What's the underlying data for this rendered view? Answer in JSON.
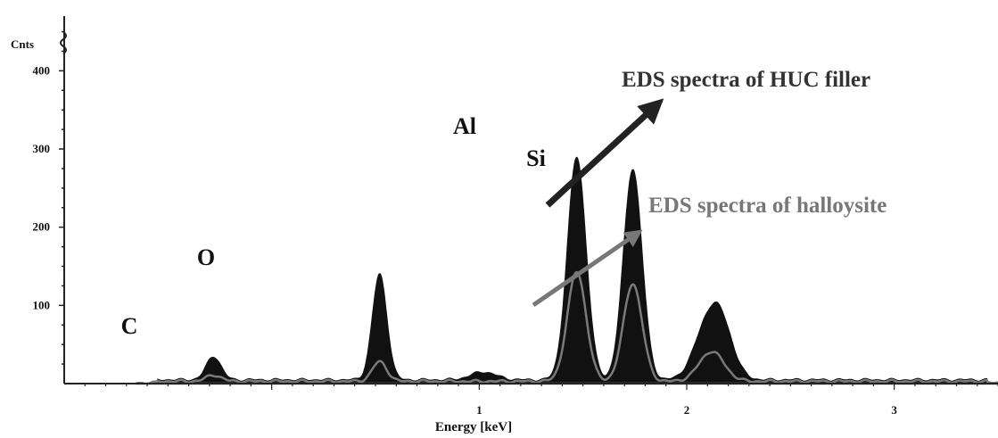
{
  "chart_data": {
    "type": "area",
    "ylabel": "Cnts",
    "xlabel": "Energy [keV]",
    "xlim": [
      -1.0,
      3.5
    ],
    "ylim": [
      0,
      470
    ],
    "x_ticks": [
      1,
      2,
      3
    ],
    "y_ticks": [
      100,
      200,
      300,
      400
    ],
    "peak_labels": [
      {
        "text": "C",
        "x": -0.42,
        "y": 60
      },
      {
        "text": "O",
        "x": -0.51,
        "y": 145
      },
      {
        "text": "Al",
        "x": 0.49,
        "y": 330
      },
      {
        "text": "Si",
        "x": 0.74,
        "y": 285
      }
    ],
    "annotations": [
      {
        "text": "EDS spectra of  HUC filler",
        "series": "huc"
      },
      {
        "text": "EDS spectra of halloysite",
        "series": "halloysite"
      }
    ],
    "colors": {
      "huc": "#111111",
      "halloysite": "#7a7a7a",
      "axis": "#222222"
    },
    "series": [
      {
        "key": "huc",
        "peaks": [
          [
            -0.28,
            30,
            0.035
          ],
          [
            0.52,
            135,
            0.035
          ],
          [
            1.47,
            285,
            0.045
          ],
          [
            1.74,
            270,
            0.045
          ],
          [
            2.08,
            45,
            0.06
          ],
          [
            2.16,
            75,
            0.06
          ],
          [
            1.02,
            10,
            0.06
          ]
        ],
        "baseline": 5
      },
      {
        "key": "halloysite",
        "peaks": [
          [
            -0.28,
            8,
            0.035
          ],
          [
            0.52,
            25,
            0.035
          ],
          [
            1.47,
            140,
            0.045
          ],
          [
            1.74,
            125,
            0.045
          ],
          [
            2.12,
            38,
            0.06
          ]
        ],
        "baseline": 3
      }
    ]
  }
}
